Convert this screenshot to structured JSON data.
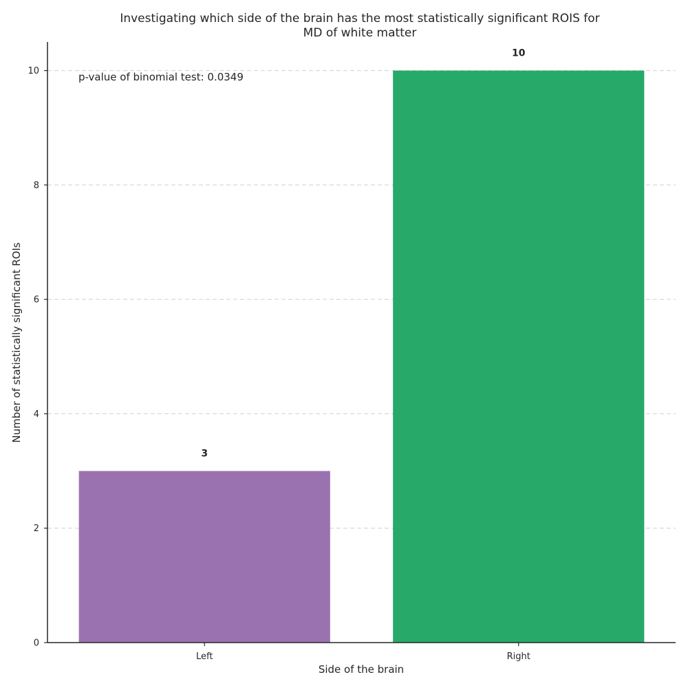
{
  "chart_data": {
    "type": "bar",
    "title_lines": [
      "Investigating which side of the brain has the most statistically significant ROIS for",
      "MD of white matter"
    ],
    "xlabel": "Side of the brain",
    "ylabel": "Number of statistically significant ROIs",
    "categories": [
      "Left",
      "Right"
    ],
    "values": [
      3,
      10
    ],
    "bar_labels": [
      "3",
      "10"
    ],
    "colors": [
      "#9b72b0",
      "#27a96a"
    ],
    "ylim": [
      0,
      10.5
    ],
    "yticks": [
      0,
      2,
      4,
      6,
      8,
      10
    ],
    "grid": "y-dashed",
    "annotation": "p-value of binomial test: 0.0349"
  }
}
